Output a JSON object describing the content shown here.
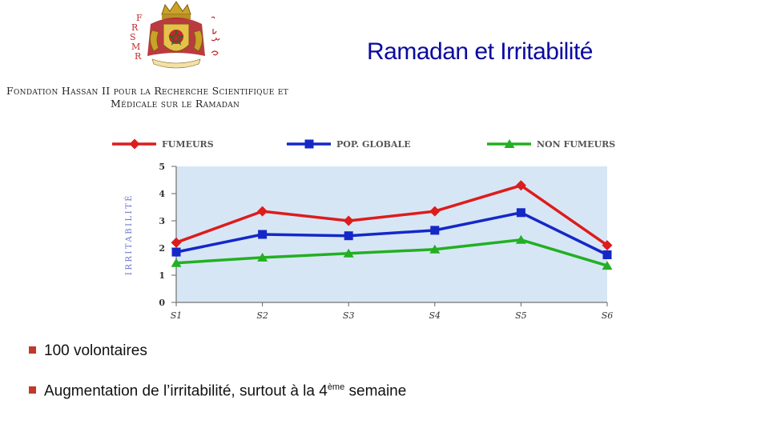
{
  "header": {
    "logo_letters_left": [
      "F",
      "R",
      "S",
      "M",
      "R"
    ],
    "org_line1": "Fondation Hassan II pour la Recherche Scientifique et",
    "org_line2": "Médicale sur le Ramadan",
    "title": "Ramadan et Irritabilité"
  },
  "chart_data": {
    "type": "line",
    "categories": [
      "S1",
      "S2",
      "S3",
      "S4",
      "S5",
      "S6"
    ],
    "ylabel": "IRRITABILITÉ",
    "ylim": [
      0,
      5
    ],
    "yticks": [
      "0",
      "1",
      "2",
      "3",
      "4",
      "5"
    ],
    "legend_position": "top",
    "series": [
      {
        "name": "FUMEURS",
        "color": "#dd1c1c",
        "marker": "diamond",
        "values": [
          2.2,
          3.35,
          3.0,
          3.35,
          4.3,
          2.1
        ]
      },
      {
        "name": "POP. GLOBALE",
        "color": "#1428c8",
        "marker": "square",
        "values": [
          1.85,
          2.5,
          2.45,
          2.65,
          3.3,
          1.75
        ]
      },
      {
        "name": "NON FUMEURS",
        "color": "#22b022",
        "marker": "triangle",
        "values": [
          1.45,
          1.65,
          1.8,
          1.95,
          2.3,
          1.35
        ]
      }
    ],
    "plot_background": "#d7e6f5"
  },
  "bullets": {
    "item1": "100 volontaires",
    "item2_main": "Augmentation de l’irritabilité, surtout à la 4",
    "item2_sup": "ème",
    "item2_end": " semaine"
  },
  "colors": {
    "title": "#0a0aa0",
    "bullet_marker": "#c0392b"
  }
}
